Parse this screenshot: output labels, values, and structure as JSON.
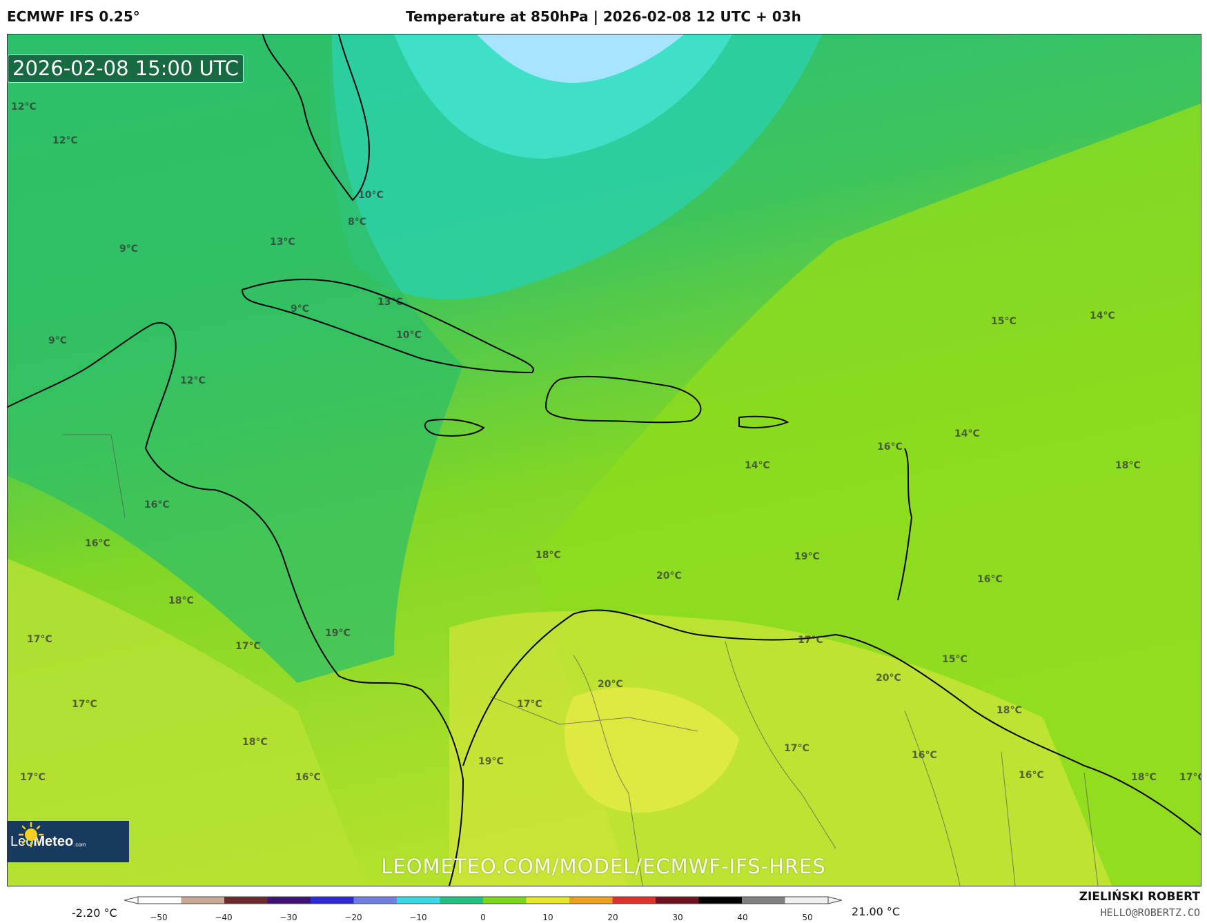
{
  "header": {
    "model_title": "ECMWF IFS 0.25°",
    "chart_title": "Temperature at 850hPa | 2026-02-08 12 UTC + 03h"
  },
  "map": {
    "valid_time": "2026-02-08 15:00 UTC",
    "temperature_labels": [
      "12°C",
      "12°C",
      "10°C",
      "8°C",
      "13°C",
      "9°C",
      "9°C",
      "13°C",
      "10°C",
      "9°C",
      "12°C",
      "15°C",
      "14°C",
      "16°C",
      "14°C",
      "14°C",
      "18°C",
      "16°C",
      "16°C",
      "18°C",
      "16°C",
      "20°C",
      "19°C",
      "18°C",
      "19°C",
      "17°C",
      "17°C",
      "17°C",
      "15°C",
      "20°C",
      "20°C",
      "17°C",
      "17°C",
      "17°C",
      "18°C",
      "18°C",
      "19°C",
      "17°C",
      "16°C",
      "16°C",
      "16°C",
      "18°C",
      "17°C"
    ],
    "watermark": "LEOMETEO.COM/MODEL/ECMWF-IFS-HRES",
    "logo": {
      "name_part1": "Leo",
      "name_part2": "Meteo",
      "suffix": ".com",
      "icon": "sun-icon"
    }
  },
  "legend": {
    "min_value": "-2.20 °C",
    "max_value": "21.00 °C",
    "ticks": [
      "−50",
      "−40",
      "−30",
      "−20",
      "−10",
      "0",
      "10",
      "20",
      "30",
      "40",
      "50"
    ],
    "colors": [
      "#ffffff",
      "#caa894",
      "#6b2b2b",
      "#40107a",
      "#2c2ad6",
      "#6f7fe6",
      "#38d8e8",
      "#20c080",
      "#7ad81a",
      "#e8e82a",
      "#f0a020",
      "#e0302a",
      "#701020",
      "#000000",
      "#808080",
      "#f0f0f0"
    ]
  },
  "author": {
    "name": "ZIELIŃSKI ROBERT",
    "email": "HELLO@ROBERTZ.CO"
  }
}
